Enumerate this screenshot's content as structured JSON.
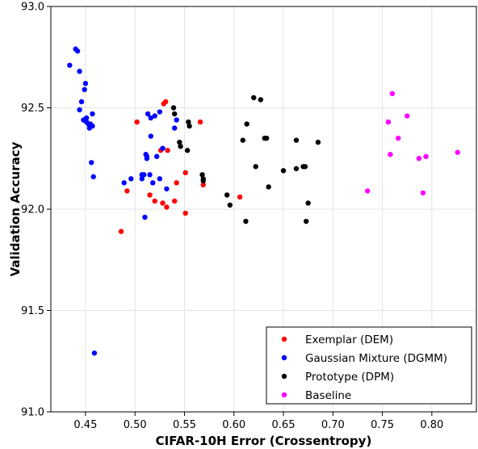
{
  "chart_data": {
    "type": "scatter",
    "title": "",
    "xlabel": "CIFAR-10H Error (Crossentropy)",
    "ylabel": "Validation Accuracy",
    "xlim": [
      0.415,
      0.845
    ],
    "ylim": [
      91.0,
      93.0
    ],
    "xticks": [
      0.45,
      0.5,
      0.55,
      0.6,
      0.65,
      0.7,
      0.75,
      0.8
    ],
    "xtick_labels": [
      "0.45",
      "0.50",
      "0.55",
      "0.60",
      "0.65",
      "0.70",
      "0.75",
      "0.80"
    ],
    "yticks": [
      91.0,
      91.5,
      92.0,
      92.5,
      93.0
    ],
    "ytick_labels": [
      "91.0",
      "91.5",
      "92.0",
      "92.5",
      "93.0"
    ],
    "grid": true,
    "legend_position": "bottom-right",
    "series": [
      {
        "name": "Exemplar (DEM)",
        "color": "#ff0000",
        "points": [
          [
            0.486,
            91.89
          ],
          [
            0.492,
            92.09
          ],
          [
            0.502,
            92.43
          ],
          [
            0.515,
            92.07
          ],
          [
            0.52,
            92.04
          ],
          [
            0.526,
            92.29
          ],
          [
            0.528,
            92.03
          ],
          [
            0.529,
            92.52
          ],
          [
            0.531,
            92.53
          ],
          [
            0.532,
            92.01
          ],
          [
            0.533,
            92.29
          ],
          [
            0.54,
            92.04
          ],
          [
            0.542,
            92.13
          ],
          [
            0.551,
            92.18
          ],
          [
            0.551,
            91.98
          ],
          [
            0.566,
            92.43
          ],
          [
            0.569,
            92.12
          ],
          [
            0.606,
            92.06
          ]
        ]
      },
      {
        "name": "Gaussian Mixture (DGMM)",
        "color": "#0000ff",
        "points": [
          [
            0.434,
            92.71
          ],
          [
            0.44,
            92.79
          ],
          [
            0.442,
            92.78
          ],
          [
            0.444,
            92.68
          ],
          [
            0.444,
            92.49
          ],
          [
            0.446,
            92.53
          ],
          [
            0.448,
            92.44
          ],
          [
            0.449,
            92.59
          ],
          [
            0.45,
            92.62
          ],
          [
            0.451,
            92.45
          ],
          [
            0.451,
            92.43
          ],
          [
            0.453,
            92.42
          ],
          [
            0.454,
            92.4
          ],
          [
            0.455,
            92.42
          ],
          [
            0.456,
            92.23
          ],
          [
            0.457,
            92.47
          ],
          [
            0.457,
            92.41
          ],
          [
            0.458,
            92.16
          ],
          [
            0.459,
            91.29
          ],
          [
            0.489,
            92.13
          ],
          [
            0.496,
            92.15
          ],
          [
            0.507,
            92.17
          ],
          [
            0.507,
            92.15
          ],
          [
            0.509,
            92.17
          ],
          [
            0.51,
            91.96
          ],
          [
            0.511,
            92.27
          ],
          [
            0.512,
            92.26
          ],
          [
            0.512,
            92.25
          ],
          [
            0.513,
            92.47
          ],
          [
            0.515,
            92.17
          ],
          [
            0.516,
            92.36
          ],
          [
            0.516,
            92.45
          ],
          [
            0.518,
            92.13
          ],
          [
            0.52,
            92.46
          ],
          [
            0.522,
            92.26
          ],
          [
            0.525,
            92.48
          ],
          [
            0.525,
            92.15
          ],
          [
            0.528,
            92.3
          ],
          [
            0.532,
            92.1
          ],
          [
            0.54,
            92.4
          ],
          [
            0.542,
            92.44
          ]
        ]
      },
      {
        "name": "Prototype (DPM)",
        "color": "#000000",
        "points": [
          [
            0.539,
            92.5
          ],
          [
            0.54,
            92.47
          ],
          [
            0.545,
            92.33
          ],
          [
            0.546,
            92.31
          ],
          [
            0.553,
            92.29
          ],
          [
            0.554,
            92.43
          ],
          [
            0.555,
            92.41
          ],
          [
            0.568,
            92.17
          ],
          [
            0.569,
            92.15
          ],
          [
            0.569,
            92.14
          ],
          [
            0.593,
            92.07
          ],
          [
            0.596,
            92.02
          ],
          [
            0.609,
            92.34
          ],
          [
            0.612,
            91.94
          ],
          [
            0.613,
            92.42
          ],
          [
            0.62,
            92.55
          ],
          [
            0.622,
            92.21
          ],
          [
            0.627,
            92.54
          ],
          [
            0.631,
            92.35
          ],
          [
            0.633,
            92.35
          ],
          [
            0.635,
            92.11
          ],
          [
            0.65,
            92.19
          ],
          [
            0.663,
            92.34
          ],
          [
            0.663,
            92.2
          ],
          [
            0.67,
            92.21
          ],
          [
            0.672,
            92.21
          ],
          [
            0.673,
            91.94
          ],
          [
            0.675,
            92.03
          ],
          [
            0.685,
            92.33
          ]
        ]
      },
      {
        "name": "Baseline",
        "color": "#ff00ff",
        "points": [
          [
            0.735,
            92.09
          ],
          [
            0.756,
            92.43
          ],
          [
            0.758,
            92.27
          ],
          [
            0.76,
            92.57
          ],
          [
            0.766,
            92.35
          ],
          [
            0.775,
            92.46
          ],
          [
            0.787,
            92.25
          ],
          [
            0.791,
            92.08
          ],
          [
            0.794,
            92.26
          ],
          [
            0.826,
            92.28
          ]
        ]
      }
    ]
  }
}
